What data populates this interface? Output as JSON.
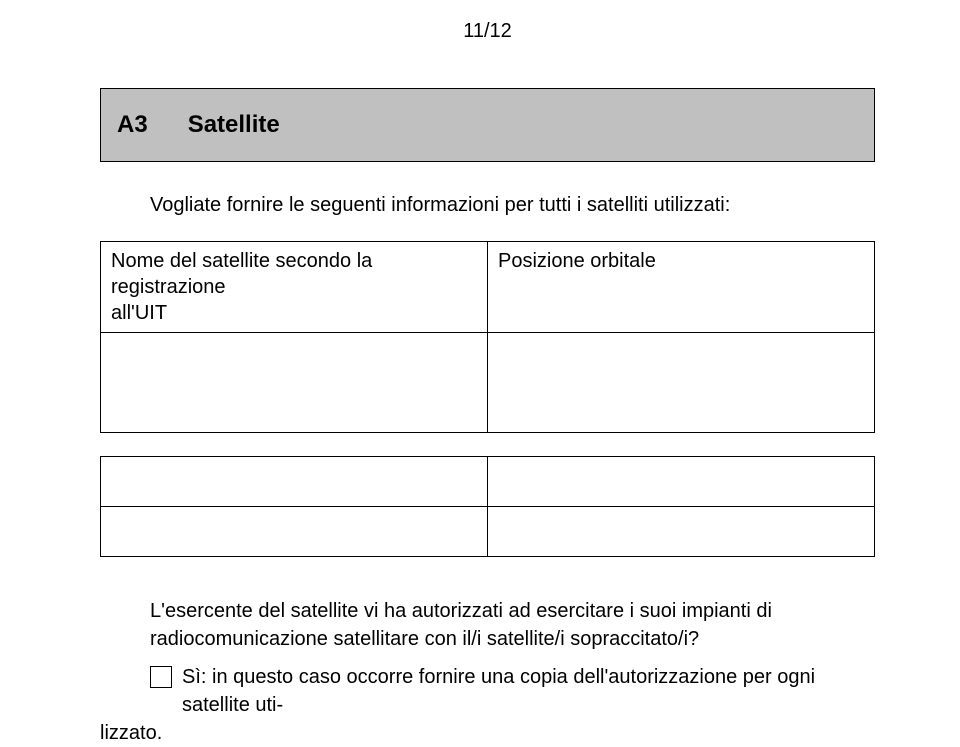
{
  "page_number": "11/12",
  "section": {
    "label": "A3",
    "title": "Satellite"
  },
  "intro": "Vogliate fornire le seguenti informazioni per tutti i satelliti utilizzati:",
  "table": {
    "col1_line1": "Nome del satellite secondo la registrazione",
    "col1_line2": "all'UIT",
    "col2": "Posizione orbitale"
  },
  "q1": "L'esercente del satellite vi ha autorizzati ad esercitare i suoi impianti di radiocomunicazione satellitare con il/i satellite/i sopraccitato/i?",
  "check_prefix": "Sì: in questo caso occorre fornire una copia dell'autorizzazione per ogni satellite uti-",
  "check_wrap": "lizzato.",
  "colors": {
    "header_bg": "#c0c0c0",
    "border": "#000000",
    "text": "#000000",
    "background": "#ffffff"
  }
}
